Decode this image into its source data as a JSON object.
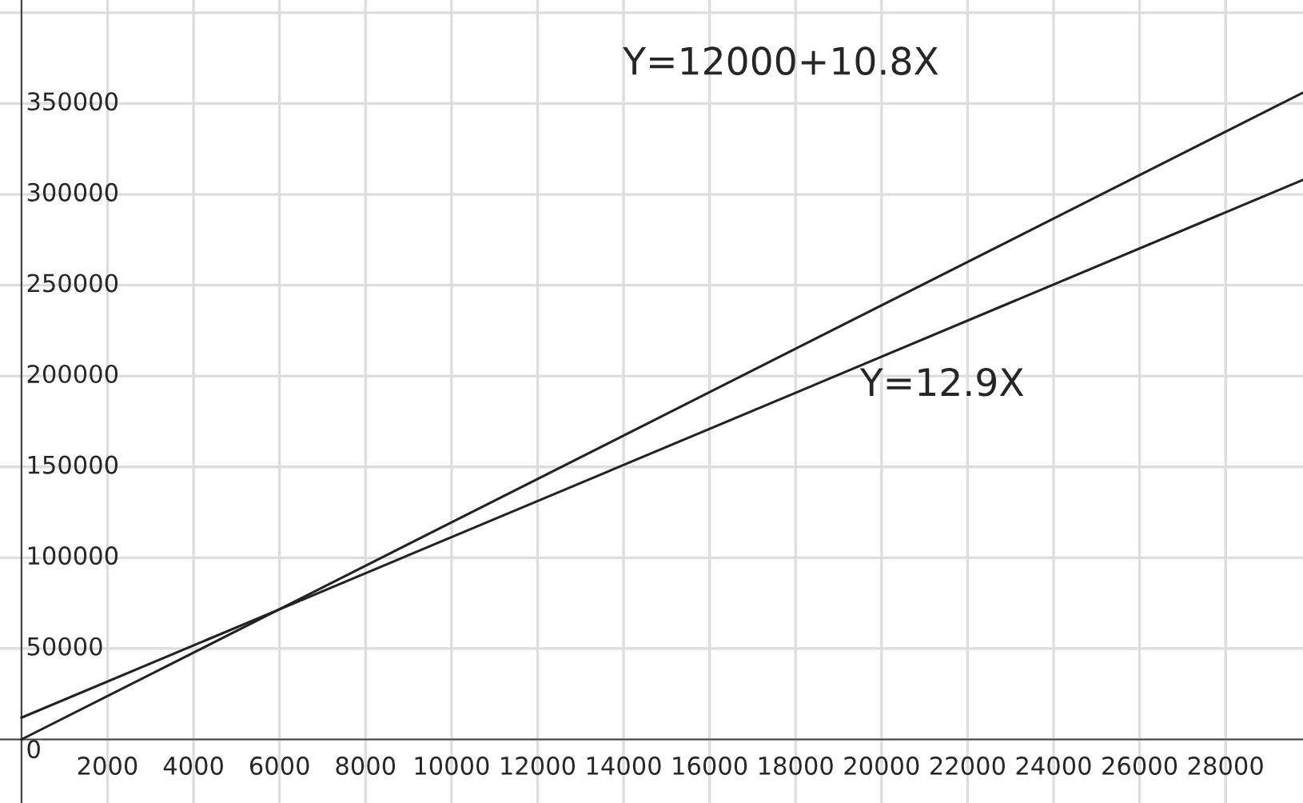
{
  "chart_data": {
    "type": "line",
    "x": [
      0,
      29800
    ],
    "series": [
      {
        "color": "#222222",
        "values": [
          0,
          356000
        ]
      },
      {
        "color": "#222222",
        "values": [
          12000,
          308000
        ]
      }
    ],
    "xlim": [
      -500,
      29800
    ],
    "ylim": [
      -35000,
      407000
    ],
    "xticks": [
      2000,
      4000,
      6000,
      8000,
      10000,
      12000,
      14000,
      16000,
      18000,
      20000,
      22000,
      24000,
      26000,
      28000
    ],
    "yticks": [
      0,
      50000,
      100000,
      150000,
      200000,
      250000,
      300000,
      350000,
      {
        "value": 400000,
        "label": null
      }
    ],
    "annotations": [
      "Y=12000+10.8X",
      "Y=12.9X"
    ],
    "grid": true,
    "marker": "none",
    "line_style": "solid"
  }
}
